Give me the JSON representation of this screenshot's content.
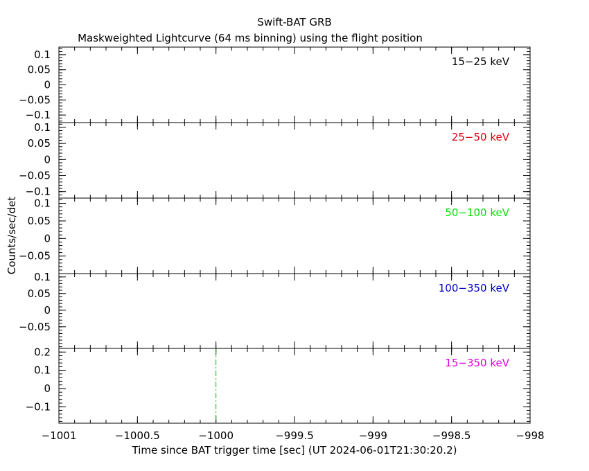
{
  "title": "Swift-BAT GRB",
  "subtitle": "Maskweighted Lightcurve (64 ms binning) using the flight position",
  "ylabel": "Counts/sec/det",
  "xlabel": "Time since BAT trigger time [sec] (UT 2024-06-01T21:30:20.2)",
  "chart_data": {
    "type": "line",
    "title": "Swift-BAT GRB",
    "subtitle": "Maskweighted Lightcurve (64 ms binning) using the flight position",
    "xlabel": "Time since BAT trigger time [sec] (UT 2024-06-01T21:30:20.2)",
    "ylabel": "Counts/sec/det",
    "xlim": [
      -1001,
      -998
    ],
    "x_ticks": [
      -1001,
      -1000.5,
      -1000,
      -999.5,
      -999,
      -998.5,
      -998
    ],
    "x_tick_labels": [
      "−1001",
      "−1000.5",
      "−1000",
      "−999.5",
      "−999",
      "−998.5",
      "−998"
    ],
    "marker_line": {
      "x": -1000,
      "color": "#00bb00",
      "style": "dash-dot",
      "panel": 4
    },
    "panels": [
      {
        "label": "15−25 keV",
        "color": "#000000",
        "ylim": [
          -0.125,
          0.125
        ],
        "yticks": [
          0.1,
          0.05,
          0,
          -0.05,
          -0.1
        ],
        "ytick_labels": [
          "0.1",
          "0.05",
          "0",
          "−0.05",
          "−0.1"
        ],
        "values": []
      },
      {
        "label": "25−50 keV",
        "color": "#e0000f",
        "ylim": [
          -0.12,
          0.115
        ],
        "yticks": [
          0.1,
          0.05,
          0,
          -0.05,
          -0.1
        ],
        "ytick_labels": [
          "0.1",
          "0.05",
          "0",
          "−0.05",
          "−0.1"
        ],
        "values": []
      },
      {
        "label": "50−100 keV",
        "color": "#00e000",
        "ylim": [
          -0.1,
          0.115
        ],
        "yticks": [
          0.1,
          0.05,
          0,
          -0.05
        ],
        "ytick_labels": [
          "0.1",
          "0.05",
          "0",
          "−0.05"
        ],
        "values": []
      },
      {
        "label": "100−350 keV",
        "color": "#0000cc",
        "ylim": [
          -0.115,
          0.11
        ],
        "yticks": [
          0.1,
          0.05,
          0,
          -0.05
        ],
        "ytick_labels": [
          "0.1",
          "0.05",
          "0",
          "−0.05"
        ],
        "values": []
      },
      {
        "label": "15−350 keV",
        "color": "#e000e0",
        "ylim": [
          -0.19,
          0.22
        ],
        "yticks": [
          0.2,
          0.1,
          0,
          -0.1
        ],
        "ytick_labels": [
          "0.2",
          "0.1",
          "0",
          "−0.1"
        ],
        "values": []
      }
    ]
  }
}
